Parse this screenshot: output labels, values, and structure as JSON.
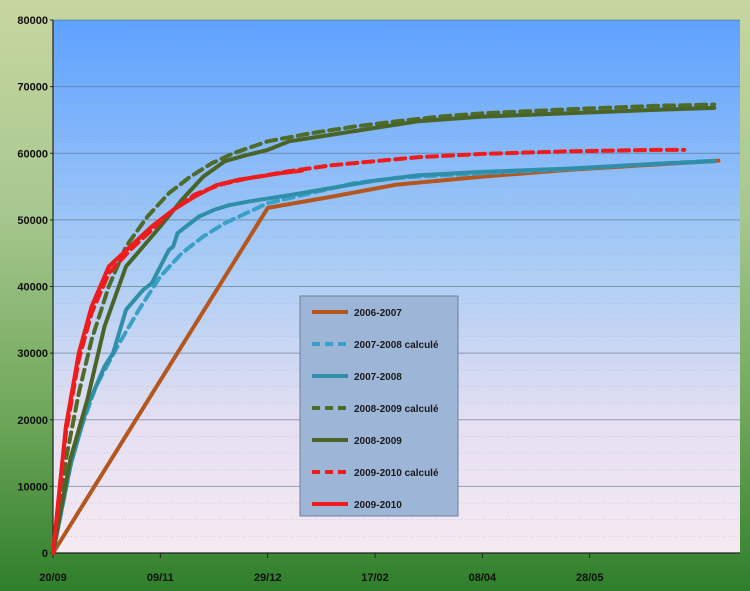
{
  "chart_data": {
    "type": "line",
    "title": "",
    "xlabel": "",
    "ylabel": "",
    "ylim": [
      0,
      80000
    ],
    "yticks": [
      "0",
      "10000",
      "20000",
      "30000",
      "40000",
      "50000",
      "60000",
      "70000",
      "80000"
    ],
    "x_ticks": [
      "20/09",
      "09/11",
      "29/12",
      "17/02",
      "08/04",
      "28/05"
    ],
    "x_unit": "days",
    "legend_position": "center",
    "series": [
      {
        "name": "2006-2007",
        "color": "#b5561f",
        "dash": false,
        "points": [
          [
            0,
            0
          ],
          [
            100,
            51800
          ],
          [
            130,
            53500
          ],
          [
            160,
            55300
          ],
          [
            200,
            56500
          ],
          [
            240,
            57500
          ],
          [
            280,
            58300
          ],
          [
            310,
            58900
          ]
        ]
      },
      {
        "name": "2007-2008 calculé",
        "color": "#3aa0c8",
        "dash": true,
        "points": [
          [
            0,
            0
          ],
          [
            10,
            16000
          ],
          [
            20,
            25000
          ],
          [
            30,
            31000
          ],
          [
            40,
            36500
          ],
          [
            50,
            41500
          ],
          [
            60,
            45000
          ],
          [
            70,
            47500
          ],
          [
            80,
            49500
          ],
          [
            90,
            51000
          ],
          [
            100,
            52500
          ],
          [
            120,
            54000
          ],
          [
            140,
            55500
          ],
          [
            160,
            56300
          ],
          [
            200,
            57000
          ],
          [
            240,
            57600
          ],
          [
            280,
            58400
          ],
          [
            308,
            58900
          ]
        ]
      },
      {
        "name": "2007-2008",
        "color": "#2f8fa8",
        "dash": false,
        "points": [
          [
            0,
            0
          ],
          [
            8,
            13000
          ],
          [
            16,
            22000
          ],
          [
            24,
            28000
          ],
          [
            28,
            30000
          ],
          [
            34,
            36500
          ],
          [
            38,
            38000
          ],
          [
            42,
            39500
          ],
          [
            46,
            40500
          ],
          [
            50,
            43000
          ],
          [
            54,
            45500
          ],
          [
            56,
            46000
          ],
          [
            58,
            48000
          ],
          [
            62,
            49000
          ],
          [
            68,
            50500
          ],
          [
            75,
            51500
          ],
          [
            82,
            52200
          ],
          [
            92,
            52800
          ],
          [
            110,
            53700
          ],
          [
            130,
            54800
          ],
          [
            150,
            55900
          ],
          [
            170,
            56700
          ],
          [
            200,
            57200
          ],
          [
            240,
            57700
          ],
          [
            280,
            58400
          ],
          [
            308,
            58800
          ]
        ]
      },
      {
        "name": "2008-2009 calculé",
        "color": "#4e6b2a",
        "dash": true,
        "points": [
          [
            0,
            0
          ],
          [
            6,
            14000
          ],
          [
            12,
            24000
          ],
          [
            18,
            32000
          ],
          [
            26,
            40000
          ],
          [
            34,
            46000
          ],
          [
            44,
            50500
          ],
          [
            54,
            54000
          ],
          [
            64,
            56500
          ],
          [
            74,
            58500
          ],
          [
            84,
            60000
          ],
          [
            100,
            61800
          ],
          [
            120,
            63000
          ],
          [
            140,
            64000
          ],
          [
            160,
            64800
          ],
          [
            180,
            65500
          ],
          [
            200,
            66000
          ],
          [
            240,
            66600
          ],
          [
            280,
            67100
          ],
          [
            308,
            67300
          ]
        ]
      },
      {
        "name": "2008-2009",
        "color": "#4a6428",
        "dash": false,
        "points": [
          [
            0,
            0
          ],
          [
            8,
            14000
          ],
          [
            16,
            23000
          ],
          [
            24,
            34000
          ],
          [
            34,
            43000
          ],
          [
            42,
            46000
          ],
          [
            50,
            49000
          ],
          [
            60,
            53000
          ],
          [
            70,
            56500
          ],
          [
            80,
            58800
          ],
          [
            90,
            59700
          ],
          [
            100,
            60500
          ],
          [
            110,
            61800
          ],
          [
            130,
            62800
          ],
          [
            150,
            63800
          ],
          [
            170,
            64800
          ],
          [
            200,
            65500
          ],
          [
            240,
            66000
          ],
          [
            280,
            66500
          ],
          [
            308,
            66800
          ]
        ]
      },
      {
        "name": "2009-2010 calculé",
        "color": "#ee1c1c",
        "dash": true,
        "points": [
          [
            0,
            0
          ],
          [
            6,
            18000
          ],
          [
            12,
            29000
          ],
          [
            18,
            36000
          ],
          [
            26,
            42000
          ],
          [
            36,
            45500
          ],
          [
            46,
            48500
          ],
          [
            56,
            51500
          ],
          [
            66,
            53800
          ],
          [
            78,
            55300
          ],
          [
            90,
            56200
          ],
          [
            110,
            57300
          ],
          [
            130,
            58200
          ],
          [
            150,
            58800
          ],
          [
            170,
            59400
          ],
          [
            200,
            59900
          ],
          [
            240,
            60300
          ],
          [
            280,
            60500
          ],
          [
            294,
            60500
          ]
        ]
      },
      {
        "name": "2009-2010",
        "color": "#ee1c1c",
        "dash": false,
        "points": [
          [
            0,
            0
          ],
          [
            6,
            19000
          ],
          [
            12,
            30000
          ],
          [
            18,
            37000
          ],
          [
            26,
            43000
          ],
          [
            36,
            46000
          ],
          [
            46,
            49000
          ],
          [
            56,
            51500
          ],
          [
            66,
            53500
          ],
          [
            76,
            55200
          ],
          [
            86,
            56000
          ],
          [
            96,
            56500
          ],
          [
            106,
            57000
          ],
          [
            116,
            57400
          ]
        ]
      }
    ]
  }
}
